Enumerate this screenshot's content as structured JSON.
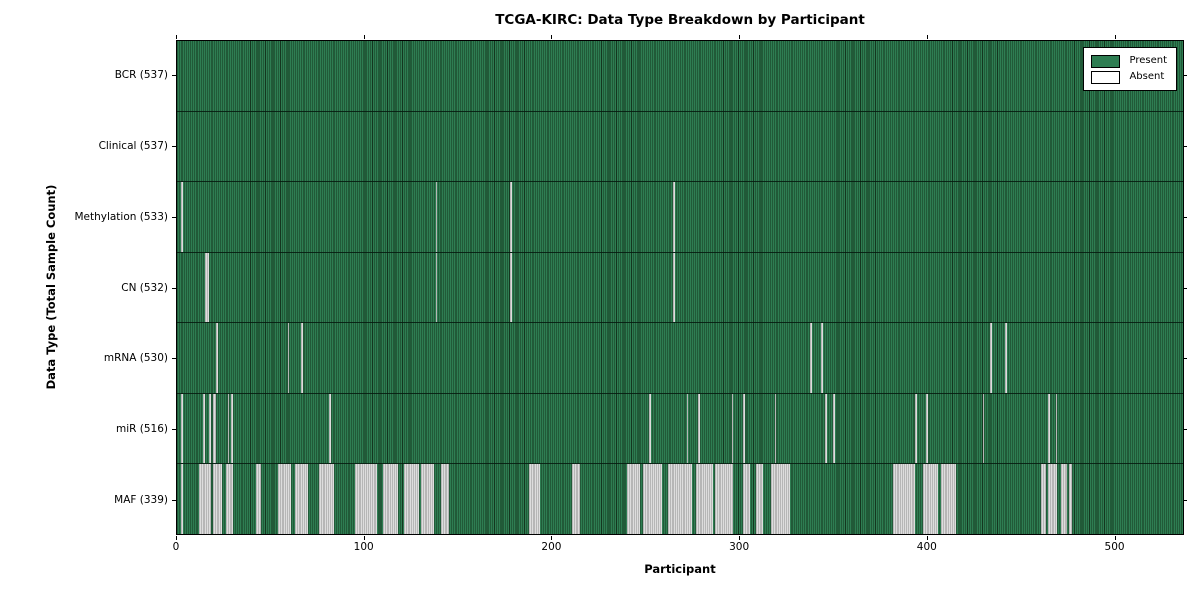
{
  "title": "TCGA-KIRC: Data Type Breakdown by Participant",
  "colors": {
    "present_fill": "#2e7d52",
    "present_edge": "#14361f",
    "absent_fill": "#dddddd",
    "absent_edge": "#8f8f8f",
    "plot_border": "#000000",
    "background": "#ffffff"
  },
  "chart_data": {
    "type": "heatmap",
    "title": "TCGA-KIRC: Data Type Breakdown by Participant",
    "xlabel": "Participant",
    "ylabel": "Data Type (Total Sample Count)",
    "xlim": [
      0,
      537
    ],
    "n_participants": 537,
    "x_ticks": [
      0,
      100,
      200,
      300,
      400,
      500
    ],
    "grid": false,
    "legend": {
      "position": "upper right",
      "entries": [
        {
          "label": "Present",
          "color": "#2e7d52"
        },
        {
          "label": "Absent",
          "color": "#ffffff"
        }
      ]
    },
    "rows": [
      {
        "name": "BCR",
        "label": "BCR (537)",
        "present": 537,
        "absent": 0,
        "absent_runs": []
      },
      {
        "name": "Clinical",
        "label": "Clinical (537)",
        "present": 537,
        "absent": 0,
        "absent_runs": []
      },
      {
        "name": "Methylation",
        "label": "Methylation (533)",
        "present": 533,
        "absent": 4,
        "absent_runs": [
          [
            2,
            1
          ],
          [
            138,
            1
          ],
          [
            178,
            1
          ],
          [
            265,
            1
          ]
        ]
      },
      {
        "name": "CN",
        "label": "CN (532)",
        "present": 532,
        "absent": 5,
        "absent_runs": [
          [
            15,
            2
          ],
          [
            138,
            1
          ],
          [
            178,
            1
          ],
          [
            265,
            1
          ]
        ]
      },
      {
        "name": "mRNA",
        "label": "mRNA (530)",
        "present": 530,
        "absent": 7,
        "absent_runs": [
          [
            21,
            1
          ],
          [
            59,
            1
          ],
          [
            66,
            1
          ],
          [
            338,
            1
          ],
          [
            344,
            1
          ],
          [
            434,
            1
          ],
          [
            442,
            1
          ]
        ]
      },
      {
        "name": "miR",
        "label": "miR (516)",
        "present": 516,
        "absent": 21,
        "absent_runs": [
          [
            2,
            1
          ],
          [
            14,
            1
          ],
          [
            17,
            1
          ],
          [
            19,
            2
          ],
          [
            27,
            1
          ],
          [
            29,
            1
          ],
          [
            81,
            1
          ],
          [
            252,
            1
          ],
          [
            272,
            1
          ],
          [
            278,
            1
          ],
          [
            296,
            1
          ],
          [
            302,
            1
          ],
          [
            319,
            1
          ],
          [
            346,
            1
          ],
          [
            350,
            1
          ],
          [
            394,
            1
          ],
          [
            400,
            1
          ],
          [
            430,
            1
          ],
          [
            465,
            1
          ],
          [
            469,
            1
          ]
        ]
      },
      {
        "name": "MAF",
        "label": "MAF (339)",
        "present": 339,
        "absent": 198,
        "absent_runs": [
          [
            2,
            1
          ],
          [
            12,
            6
          ],
          [
            19,
            5
          ],
          [
            26,
            4
          ],
          [
            42,
            3
          ],
          [
            54,
            7
          ],
          [
            63,
            7
          ],
          [
            76,
            8
          ],
          [
            95,
            12
          ],
          [
            110,
            8
          ],
          [
            121,
            8
          ],
          [
            130,
            7
          ],
          [
            141,
            4
          ],
          [
            188,
            6
          ],
          [
            211,
            4
          ],
          [
            240,
            7
          ],
          [
            249,
            10
          ],
          [
            262,
            6
          ],
          [
            268,
            7
          ],
          [
            277,
            9
          ],
          [
            287,
            10
          ],
          [
            302,
            4
          ],
          [
            309,
            4
          ],
          [
            317,
            10
          ],
          [
            382,
            12
          ],
          [
            398,
            8
          ],
          [
            408,
            8
          ],
          [
            461,
            3
          ],
          [
            465,
            5
          ],
          [
            472,
            3
          ],
          [
            476,
            2
          ]
        ]
      }
    ]
  }
}
